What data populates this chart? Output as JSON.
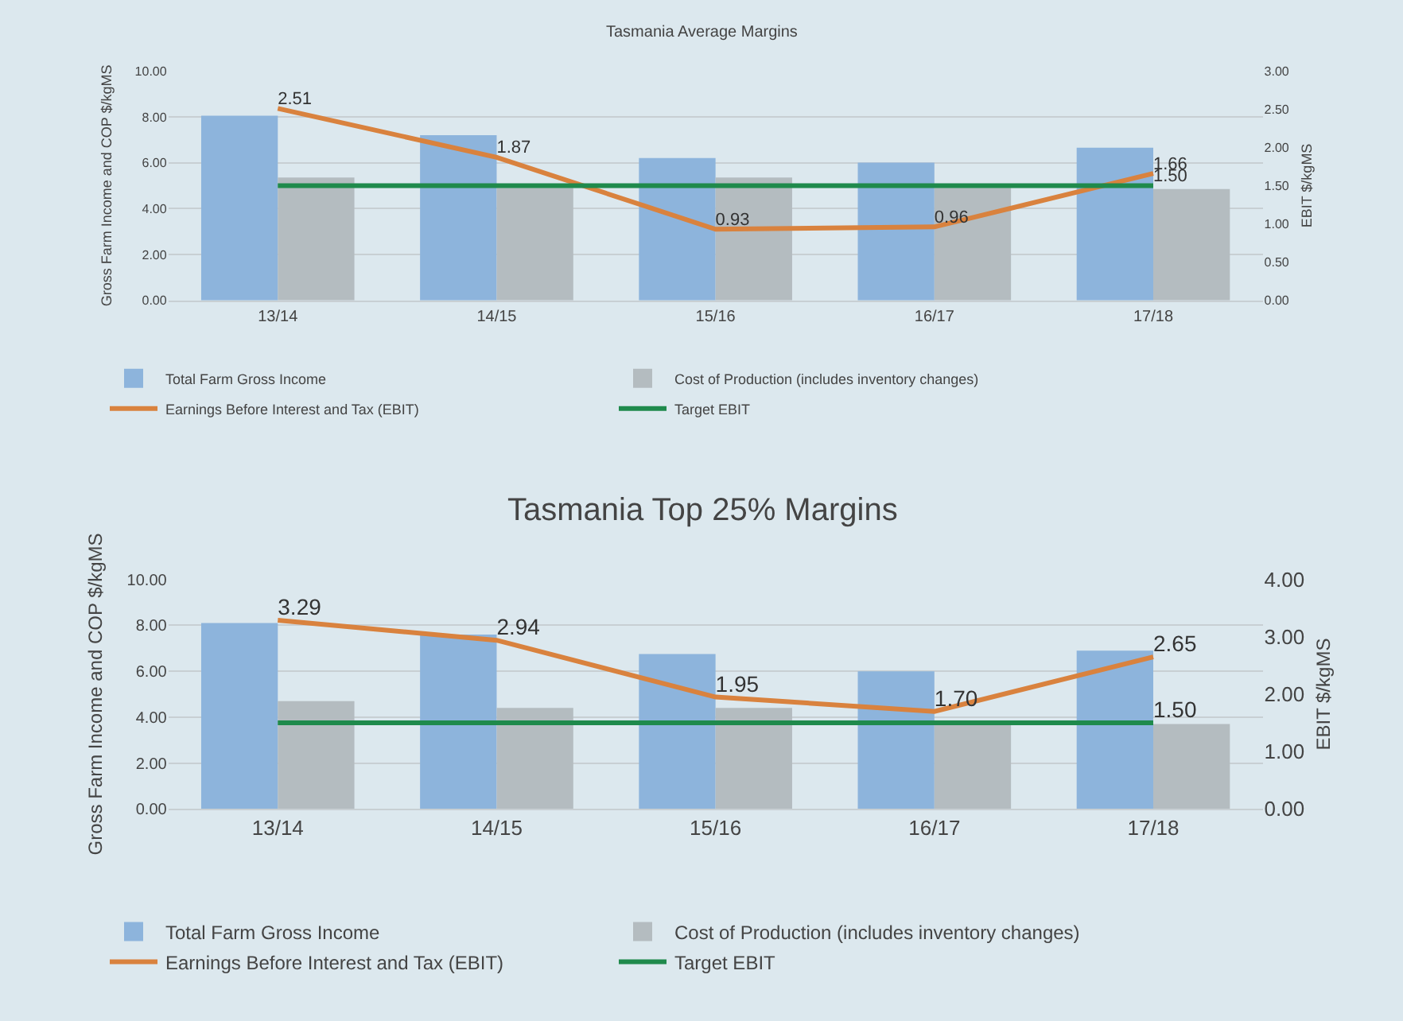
{
  "chart_data": [
    {
      "type": "bar",
      "title": "Tasmania Average Margins",
      "ylabel": "Gross Farm Income and COP $/kgMS",
      "y2label": "EBIT $/kgMS",
      "categories": [
        "13/14",
        "14/15",
        "15/16",
        "16/17",
        "17/18"
      ],
      "series": [
        {
          "name": "Total Farm Gross Income",
          "color": "#8db4dc",
          "values": [
            8.05,
            7.2,
            6.2,
            6.0,
            6.65
          ]
        },
        {
          "name": "Cost of Production (includes inventory changes)",
          "color": "#b4bcc0",
          "values": [
            5.35,
            4.9,
            5.35,
            4.9,
            4.85
          ]
        },
        {
          "name": "Earnings Before Interest and Tax (EBIT)",
          "type": "line",
          "axis": "y2",
          "color": "#d9823e",
          "values": [
            2.51,
            1.87,
            0.93,
            0.96,
            1.66
          ],
          "value_labels": [
            "2.51",
            "1.87",
            "0.93",
            "0.96",
            "1.66"
          ]
        },
        {
          "name": "Target EBIT",
          "type": "line",
          "axis": "y2",
          "color": "#1f8a4c",
          "values": [
            1.5,
            1.5,
            1.5,
            1.5,
            1.5
          ],
          "value_labels": [
            null,
            null,
            null,
            null,
            "1.50"
          ]
        }
      ],
      "ylim": [
        0,
        10
      ],
      "yticks": [
        {
          "value": 0,
          "label": "0.00"
        },
        {
          "value": 2,
          "label": "2.00"
        },
        {
          "value": 4,
          "label": "4.00"
        },
        {
          "value": 6,
          "label": "6.00"
        },
        {
          "value": 8,
          "label": "8.00"
        },
        {
          "value": 10,
          "label": "10.00"
        }
      ],
      "y2lim": [
        0,
        3
      ],
      "y2ticks": [
        {
          "value": 0,
          "label": "0.00"
        },
        {
          "value": 0.5,
          "label": "0.50"
        },
        {
          "value": 1,
          "label": "1.00"
        },
        {
          "value": 1.5,
          "label": "1.50"
        },
        {
          "value": 2,
          "label": "2.00"
        },
        {
          "value": 2.5,
          "label": "2.50"
        },
        {
          "value": 3,
          "label": "3.00"
        }
      ],
      "grid": "y",
      "legend": "bottom",
      "marker": "none"
    },
    {
      "type": "bar",
      "title": "Tasmania Top 25% Margins",
      "ylabel": "Gross Farm Income and COP $/kgMS",
      "y2label": "EBIT $/kgMS",
      "categories": [
        "13/14",
        "14/15",
        "15/16",
        "16/17",
        "17/18"
      ],
      "series": [
        {
          "name": "Total Farm Gross Income",
          "color": "#8db4dc",
          "values": [
            8.1,
            7.6,
            6.75,
            6.0,
            6.9
          ]
        },
        {
          "name": "Cost of Production (includes inventory changes)",
          "color": "#b4bcc0",
          "values": [
            4.7,
            4.4,
            4.4,
            3.8,
            3.7
          ]
        },
        {
          "name": "Earnings Before Interest and Tax (EBIT)",
          "type": "line",
          "axis": "y2",
          "color": "#d9823e",
          "values": [
            3.29,
            2.94,
            1.95,
            1.7,
            2.65
          ],
          "value_labels": [
            "3.29",
            "2.94",
            "1.95",
            "1.70",
            "2.65"
          ]
        },
        {
          "name": "Target EBIT",
          "type": "line",
          "axis": "y2",
          "color": "#1f8a4c",
          "values": [
            1.5,
            1.5,
            1.5,
            1.5,
            1.5
          ],
          "value_labels": [
            null,
            null,
            null,
            null,
            "1.50"
          ]
        }
      ],
      "ylim": [
        0,
        10
      ],
      "yticks": [
        {
          "value": 0,
          "label": "0.00"
        },
        {
          "value": 2,
          "label": "2.00"
        },
        {
          "value": 4,
          "label": "4.00"
        },
        {
          "value": 6,
          "label": "6.00"
        },
        {
          "value": 8,
          "label": "8.00"
        },
        {
          "value": 10,
          "label": "10.00"
        }
      ],
      "y2lim": [
        0,
        4
      ],
      "y2ticks": [
        {
          "value": 0,
          "label": "0.00"
        },
        {
          "value": 1,
          "label": "1.00"
        },
        {
          "value": 2,
          "label": "2.00"
        },
        {
          "value": 3,
          "label": "3.00"
        },
        {
          "value": 4,
          "label": "4.00"
        }
      ],
      "grid": "y",
      "legend": "bottom",
      "marker": "none"
    }
  ]
}
